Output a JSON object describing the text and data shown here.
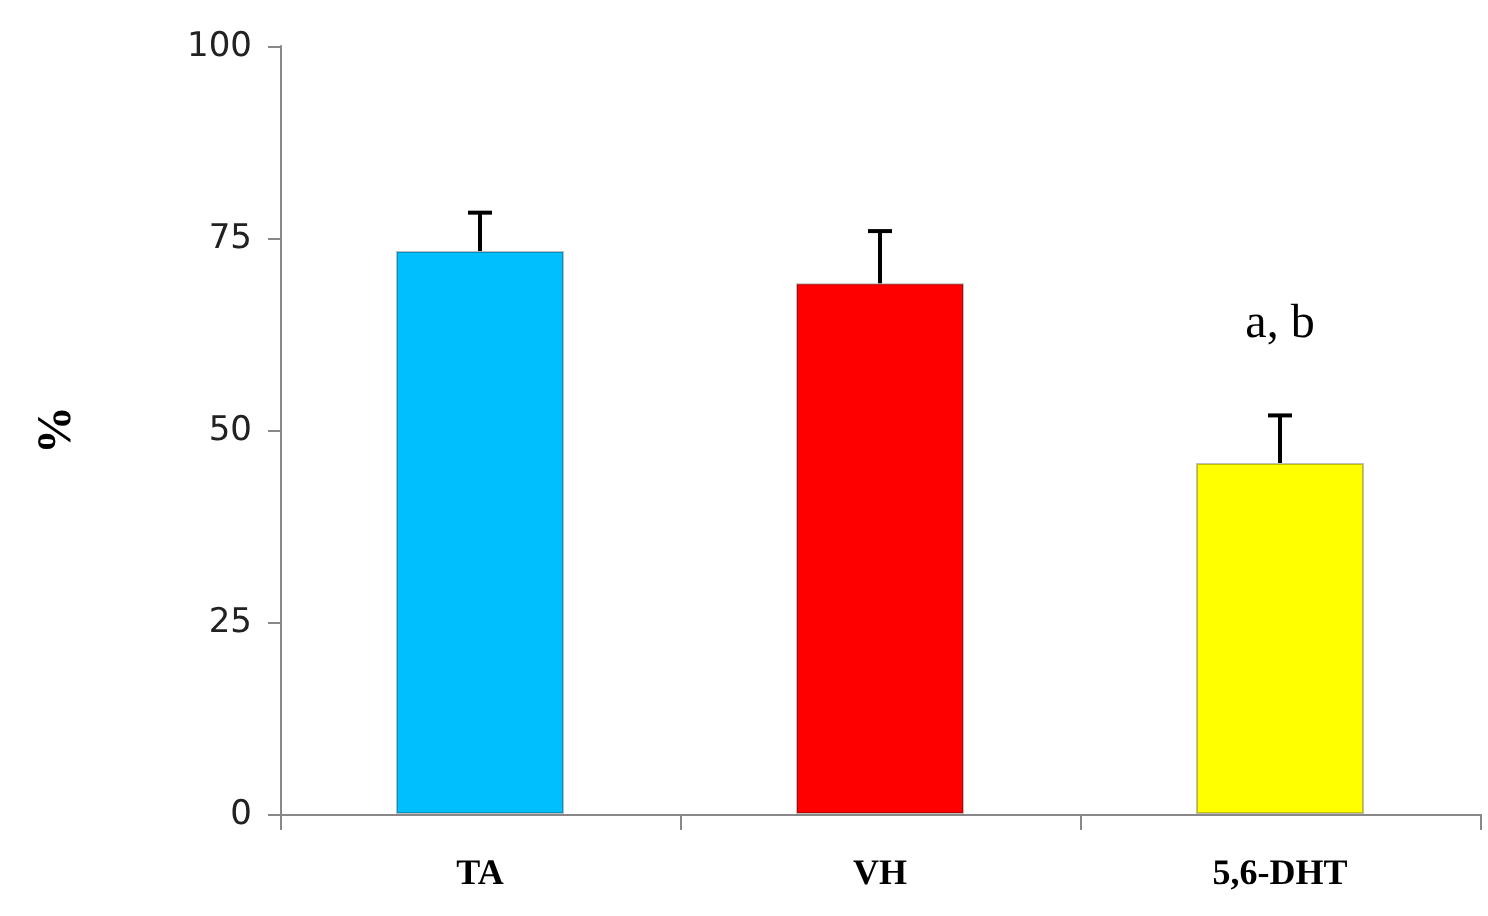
{
  "chart_data": {
    "type": "bar",
    "ylabel": "%",
    "categories": [
      "TA",
      "VH",
      "5,6-DHT"
    ],
    "values": [
      73.3,
      69.1,
      45.7
    ],
    "colors": [
      "#00bfff",
      "#ff0000",
      "#ffff00"
    ],
    "errors": [
      [
        73.3,
        78.3
      ],
      [
        69.1,
        75.9
      ],
      [
        45.7,
        51.9
      ]
    ],
    "ylim": [
      0,
      100
    ],
    "yticks": [
      0,
      25,
      50,
      75,
      100
    ],
    "grid": false,
    "annotations": [
      "a, b"
    ]
  }
}
